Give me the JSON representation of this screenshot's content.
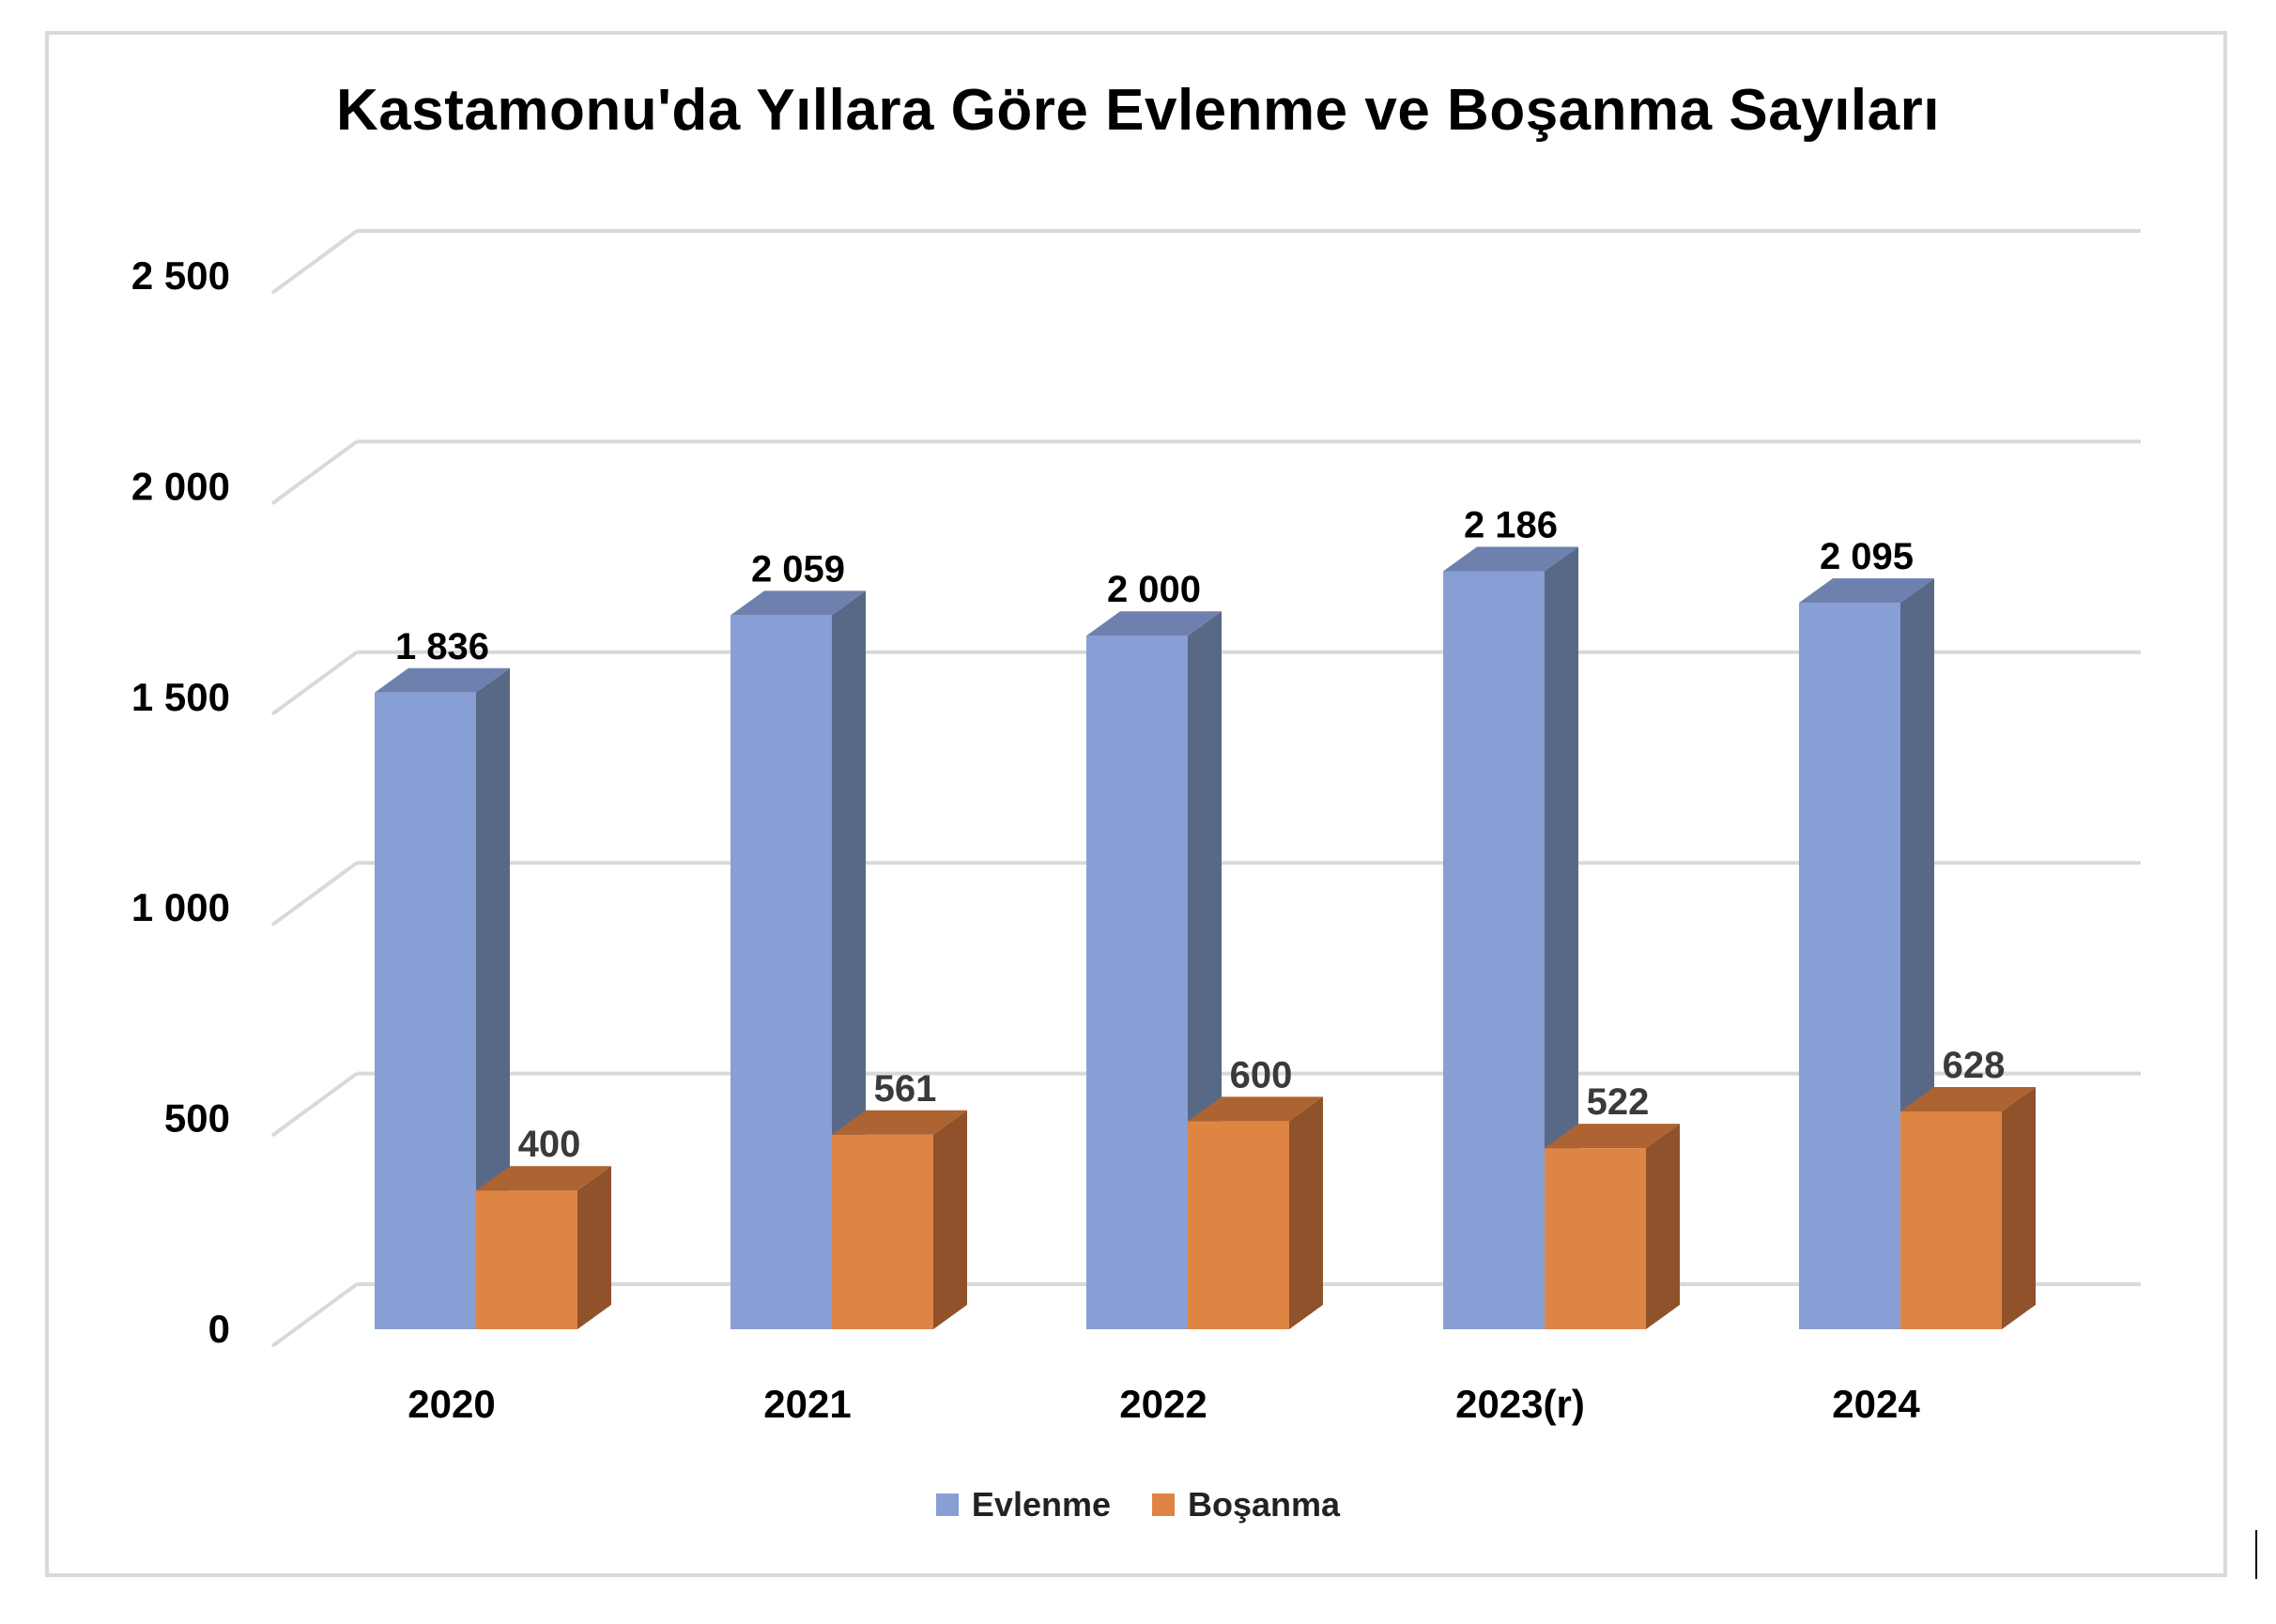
{
  "chart_data": {
    "type": "bar",
    "title": "Kastamonu'da Yıllara Göre Evlenme ve Boşanma Sayıları",
    "categories": [
      "2020",
      "2021",
      "2022",
      "2023(r)",
      "2024"
    ],
    "series": [
      {
        "name": "Evlenme",
        "values": [
          1836,
          2059,
          2000,
          2186,
          2095
        ],
        "labels": [
          "1 836",
          "2 059",
          "2 000",
          "2 186",
          "2 095"
        ],
        "color": "#879fd5",
        "side_color": "#586887",
        "top_color": "#6e80ad"
      },
      {
        "name": "Boşanma",
        "values": [
          400,
          561,
          600,
          522,
          628
        ],
        "labels": [
          "400",
          "561",
          "600",
          "522",
          "628"
        ],
        "color": "#de8544",
        "side_color": "#8f522a",
        "top_color": "#ad6332"
      }
    ],
    "yticks": [
      0,
      500,
      1000,
      1500,
      2000,
      2500
    ],
    "ytick_labels": [
      "0",
      "500",
      "1 000",
      "1 500",
      "2 000",
      "2 500"
    ],
    "ylim": [
      0,
      2500
    ],
    "grid": true,
    "legend_position": "bottom",
    "style": "3d-column"
  }
}
